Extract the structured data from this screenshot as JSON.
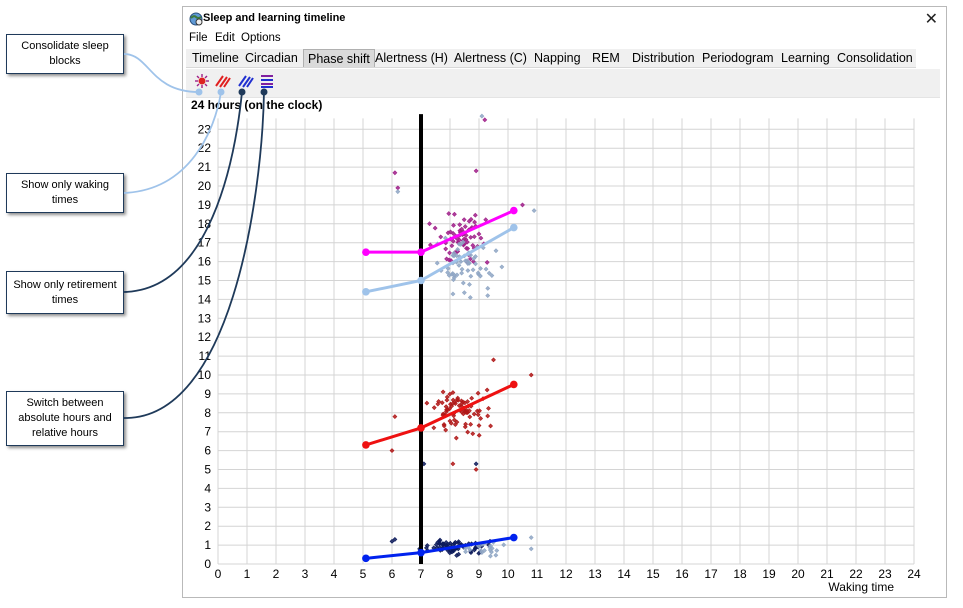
{
  "callouts": {
    "consolidate": "Consolidate sleep blocks",
    "waking": "Show only waking times",
    "retirement": "Show only retirement times",
    "switch": "Switch between absolute hours and relative hours"
  },
  "window": {
    "title": "Sleep and learning timeline",
    "close_glyph": "✕"
  },
  "menu": [
    "File",
    "Edit",
    "Options"
  ],
  "tabs": [
    "Timeline",
    "Circadian",
    "Phase shift",
    "Alertness (H)",
    "Alertness (C)",
    "Napping",
    "REM",
    "Distribution",
    "Periodogram",
    "Learning",
    "Consolidation"
  ],
  "active_tab": "Phase shift",
  "toolbar_icons": [
    "consolidate-icon",
    "waking-only-icon",
    "retirement-only-icon",
    "hours-mode-icon"
  ],
  "colors": {
    "magenta": "#ff00ff",
    "lightblue": "#9fc3ea",
    "red": "#ee1111",
    "blue": "#0022ee",
    "darkred": "#b01818",
    "navy": "#0c1a5a",
    "purple": "#a0208a",
    "grayblue": "#8fa6c4",
    "connector": "#1f3a5a"
  },
  "chart_data": {
    "type": "scatter",
    "title": "24 hours (on the clock)",
    "xlabel": "Waking time",
    "ylabel": "",
    "xlim": [
      0,
      24
    ],
    "ylim": [
      0,
      24
    ],
    "xticks": [
      0,
      1,
      2,
      3,
      4,
      5,
      6,
      7,
      8,
      9,
      10,
      11,
      12,
      13,
      14,
      15,
      16,
      17,
      18,
      19,
      20,
      21,
      22,
      23,
      24
    ],
    "yticks": [
      0,
      1,
      2,
      3,
      4,
      5,
      6,
      7,
      8,
      9,
      10,
      11,
      12,
      13,
      14,
      15,
      16,
      17,
      18,
      19,
      20,
      21,
      22,
      23
    ],
    "grid": true,
    "vertical_marker_x": 7,
    "trend_lines": [
      {
        "color": "magenta",
        "points": [
          [
            5.1,
            16.5
          ],
          [
            7.0,
            16.5
          ],
          [
            10.2,
            18.7
          ]
        ]
      },
      {
        "color": "lightblue",
        "points": [
          [
            5.1,
            14.4
          ],
          [
            7.0,
            15.0
          ],
          [
            10.2,
            17.8
          ]
        ]
      },
      {
        "color": "red",
        "points": [
          [
            5.1,
            6.3
          ],
          [
            7.0,
            7.2
          ],
          [
            10.2,
            9.5
          ]
        ]
      },
      {
        "color": "blue",
        "points": [
          [
            5.1,
            0.3
          ],
          [
            7.0,
            0.6
          ],
          [
            10.2,
            1.4
          ]
        ]
      }
    ],
    "scatter_clusters": [
      {
        "color": "purple",
        "center": [
          8.4,
          17.2
        ],
        "spread": [
          0.8,
          1.0
        ],
        "count": 70
      },
      {
        "color": "grayblue",
        "center": [
          8.5,
          15.8
        ],
        "spread": [
          0.8,
          1.0
        ],
        "count": 60
      },
      {
        "color": "darkred",
        "center": [
          8.3,
          8.2
        ],
        "spread": [
          0.8,
          0.9
        ],
        "count": 80
      },
      {
        "color": "navy",
        "center": [
          8.2,
          0.9
        ],
        "spread": [
          0.8,
          0.35
        ],
        "count": 70
      },
      {
        "color": "grayblue",
        "center": [
          9.2,
          0.8
        ],
        "spread": [
          0.6,
          0.3
        ],
        "count": 20
      }
    ],
    "outliers": [
      {
        "color": "purple",
        "points": [
          [
            6.1,
            20.7
          ],
          [
            8.9,
            20.8
          ],
          [
            10.5,
            19.0
          ],
          [
            9.2,
            23.5
          ],
          [
            6.2,
            19.9
          ]
        ]
      },
      {
        "color": "grayblue",
        "points": [
          [
            6.2,
            19.7
          ],
          [
            10.9,
            18.7
          ],
          [
            8.7,
            14.1
          ],
          [
            9.3,
            14.2
          ],
          [
            9.1,
            23.7
          ]
        ]
      },
      {
        "color": "darkred",
        "points": [
          [
            6.0,
            6.0
          ],
          [
            6.1,
            7.8
          ],
          [
            9.5,
            10.8
          ],
          [
            10.8,
            10.0
          ],
          [
            8.9,
            5.0
          ],
          [
            8.1,
            5.3
          ]
        ]
      },
      {
        "color": "navy",
        "points": [
          [
            6.0,
            1.2
          ],
          [
            6.1,
            1.3
          ],
          [
            7.1,
            5.3
          ],
          [
            8.9,
            5.3
          ]
        ]
      },
      {
        "color": "grayblue",
        "points": [
          [
            10.8,
            1.4
          ],
          [
            10.8,
            0.8
          ]
        ]
      }
    ]
  }
}
